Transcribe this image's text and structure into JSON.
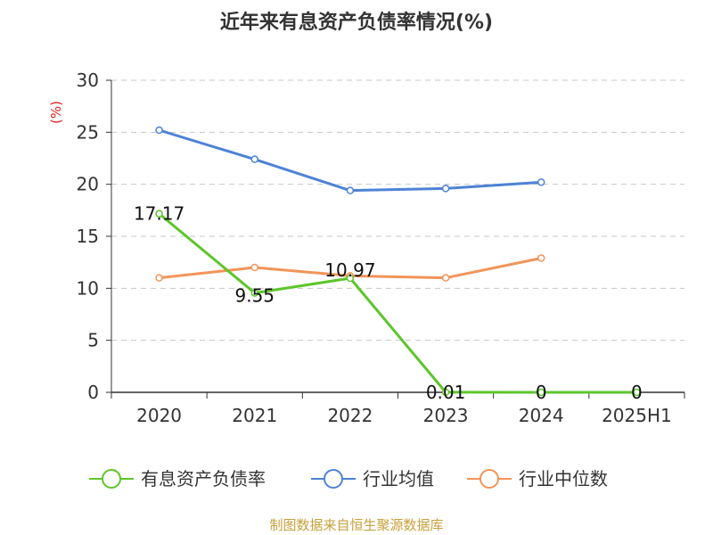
{
  "chart_data": {
    "type": "line",
    "title": "近年来有息资产负债率情况(%)",
    "ylabel": "(%)",
    "categories": [
      "2020",
      "2021",
      "2022",
      "2023",
      "2024",
      "2025H1"
    ],
    "ylim": [
      0,
      30
    ],
    "yticks": [
      0,
      5,
      10,
      15,
      20,
      25,
      30
    ],
    "grid": true,
    "legend_position": "bottom",
    "series": [
      {
        "name": "有息资产负债率",
        "color": "#5ec52b",
        "values": [
          17.17,
          9.55,
          10.97,
          0.01,
          0,
          0
        ],
        "labels": [
          "17.17",
          "9.55",
          "10.97",
          "0.01",
          "0",
          "0"
        ]
      },
      {
        "name": "行业均值",
        "color": "#4d82d6",
        "values": [
          25.2,
          22.4,
          19.4,
          19.6,
          20.2,
          null
        ]
      },
      {
        "name": "行业中位数",
        "color": "#f29459",
        "values": [
          11.0,
          12.0,
          11.2,
          11.0,
          12.9,
          null
        ]
      }
    ]
  },
  "source": "制图数据来自恒生聚源数据库"
}
